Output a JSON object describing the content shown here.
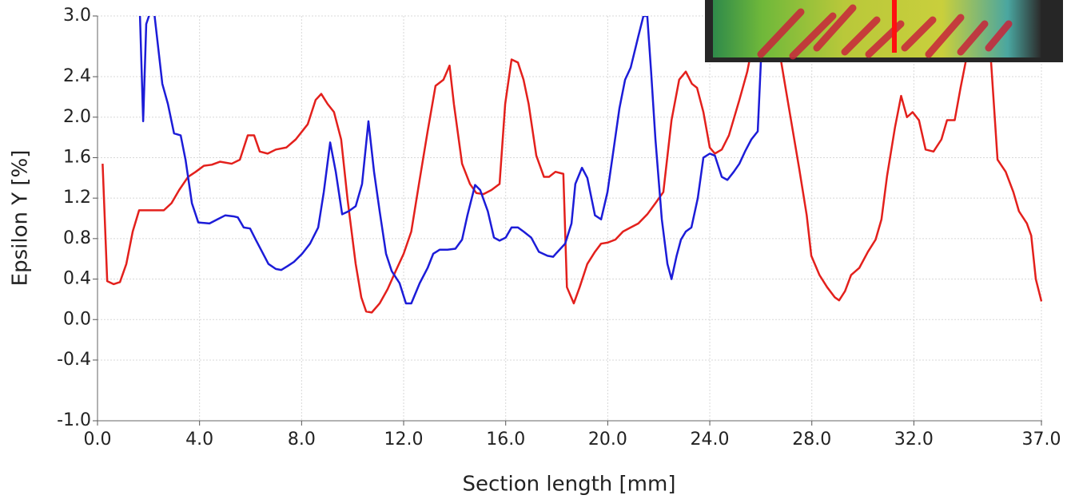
{
  "chart_data": {
    "type": "line",
    "x_label": "Section length [mm]",
    "y_label": "Epsilon Y [%]",
    "xlim": [
      0,
      37
    ],
    "ylim": [
      -1,
      3
    ],
    "xticks": [
      {
        "value": 0,
        "label": "0.0"
      },
      {
        "value": 4,
        "label": "4.0"
      },
      {
        "value": 8,
        "label": "8.0"
      },
      {
        "value": 12,
        "label": "12.0"
      },
      {
        "value": 16,
        "label": "16.0"
      },
      {
        "value": 20,
        "label": "20.0"
      },
      {
        "value": 24,
        "label": "24.0"
      },
      {
        "value": 28,
        "label": "28.0"
      },
      {
        "value": 32,
        "label": "32.0"
      },
      {
        "value": 37,
        "label": "37.0"
      }
    ],
    "yticks": [
      {
        "value": -1,
        "label": "-1.0"
      },
      {
        "value": -0.4,
        "label": "-0.4"
      },
      {
        "value": 0,
        "label": "0.0"
      },
      {
        "value": 0.4,
        "label": "0.4"
      },
      {
        "value": 0.8,
        "label": "0.8"
      },
      {
        "value": 1.2,
        "label": "1.2"
      },
      {
        "value": 1.6,
        "label": "1.6"
      },
      {
        "value": 2,
        "label": "2.0"
      },
      {
        "value": 2.4,
        "label": "2.4"
      },
      {
        "value": 3,
        "label": "3.0"
      }
    ],
    "grid": true,
    "series": [
      {
        "color": "#e3201c",
        "x": [
          0.2,
          0.38,
          0.63,
          0.88,
          1.13,
          1.38,
          1.63,
          2.13,
          2.6,
          2.9,
          3.2,
          3.55,
          3.85,
          4.17,
          4.48,
          4.8,
          5.26,
          5.58,
          5.89,
          6.14,
          6.36,
          6.67,
          6.99,
          7.4,
          7.77,
          8.24,
          8.55,
          8.77,
          9.02,
          9.27,
          9.55,
          9.8,
          10.12,
          10.34,
          10.53,
          10.75,
          11.06,
          11.37,
          11.69,
          12.0,
          12.3,
          12.6,
          12.94,
          13.25,
          13.56,
          13.8,
          13.97,
          14.29,
          14.6,
          14.85,
          15.13,
          15.44,
          15.76,
          15.98,
          16.23,
          16.48,
          16.7,
          16.9,
          17.2,
          17.5,
          17.7,
          17.95,
          18.26,
          18.4,
          18.67,
          18.9,
          19.2,
          19.5,
          19.74,
          19.99,
          20.3,
          20.6,
          20.9,
          21.2,
          21.55,
          21.87,
          22.18,
          22.5,
          22.8,
          23.06,
          23.3,
          23.5,
          23.75,
          24.0,
          24.2,
          24.47,
          24.75,
          25.16,
          25.47,
          25.8,
          26.3,
          26.97,
          27.5,
          27.8,
          27.98,
          28.3,
          28.6,
          28.9,
          29.07,
          29.3,
          29.54,
          29.86,
          30.2,
          30.5,
          30.73,
          30.95,
          31.26,
          31.5,
          31.73,
          31.95,
          32.2,
          32.46,
          32.77,
          33.08,
          33.3,
          33.6,
          33.83,
          34.08,
          34.5,
          35.02,
          35.28,
          35.6,
          35.9,
          36.12,
          36.43,
          36.6,
          36.78,
          37.0
        ],
        "values": [
          1.54,
          0.38,
          0.35,
          0.37,
          0.55,
          0.87,
          1.08,
          1.08,
          1.08,
          1.15,
          1.28,
          1.41,
          1.46,
          1.52,
          1.53,
          1.56,
          1.54,
          1.58,
          1.82,
          1.82,
          1.66,
          1.64,
          1.68,
          1.7,
          1.78,
          1.93,
          2.17,
          2.23,
          2.13,
          2.05,
          1.78,
          1.19,
          0.55,
          0.22,
          0.08,
          0.07,
          0.16,
          0.3,
          0.48,
          0.65,
          0.87,
          1.34,
          1.86,
          2.31,
          2.37,
          2.51,
          2.13,
          1.54,
          1.34,
          1.25,
          1.24,
          1.28,
          1.34,
          2.13,
          2.57,
          2.54,
          2.37,
          2.13,
          1.62,
          1.41,
          1.41,
          1.46,
          1.44,
          0.32,
          0.16,
          0.32,
          0.55,
          0.67,
          0.75,
          0.76,
          0.79,
          0.87,
          0.91,
          0.95,
          1.04,
          1.15,
          1.26,
          1.97,
          2.37,
          2.45,
          2.33,
          2.29,
          2.05,
          1.7,
          1.64,
          1.68,
          1.82,
          2.17,
          2.45,
          2.88,
          3.3,
          2.29,
          1.5,
          1.03,
          0.63,
          0.44,
          0.32,
          0.22,
          0.19,
          0.28,
          0.44,
          0.51,
          0.67,
          0.79,
          0.99,
          1.42,
          1.9,
          2.21,
          2.0,
          2.05,
          1.97,
          1.68,
          1.66,
          1.78,
          1.97,
          1.97,
          2.29,
          2.61,
          3.3,
          2.57,
          1.58,
          1.46,
          1.26,
          1.07,
          0.95,
          0.83,
          0.4,
          0.18
        ]
      },
      {
        "color": "#1c1cd8",
        "x": [
          1.66,
          1.79,
          1.91,
          2.07,
          2.22,
          2.54,
          2.76,
          3.0,
          3.26,
          3.45,
          3.7,
          3.95,
          4.39,
          4.7,
          5.01,
          5.33,
          5.5,
          5.73,
          5.98,
          6.2,
          6.45,
          6.7,
          6.99,
          7.2,
          7.46,
          7.7,
          8.02,
          8.33,
          8.65,
          8.87,
          9.12,
          9.34,
          9.59,
          9.84,
          10.12,
          10.37,
          10.62,
          10.84,
          11.06,
          11.31,
          11.53,
          11.84,
          12.09,
          12.3,
          12.63,
          12.94,
          13.16,
          13.41,
          13.72,
          14.03,
          14.29,
          14.5,
          14.8,
          15.0,
          15.3,
          15.54,
          15.76,
          16.0,
          16.23,
          16.48,
          16.7,
          17.0,
          17.3,
          17.64,
          17.86,
          18.0,
          18.33,
          18.58,
          18.73,
          18.99,
          19.2,
          19.5,
          19.74,
          19.99,
          20.24,
          20.46,
          20.68,
          20.9,
          21.2,
          21.4,
          21.55,
          21.7,
          21.87,
          22.12,
          22.34,
          22.5,
          22.7,
          22.87,
          23.06,
          23.28,
          23.53,
          23.75,
          24.0,
          24.2,
          24.47,
          24.69,
          24.94,
          25.16,
          25.38,
          25.63,
          25.88,
          26.0,
          26.1
        ],
        "values": [
          3.04,
          1.96,
          2.92,
          3.04,
          3.04,
          2.33,
          2.13,
          1.84,
          1.82,
          1.58,
          1.15,
          0.96,
          0.95,
          0.99,
          1.03,
          1.02,
          1.01,
          0.91,
          0.9,
          0.79,
          0.67,
          0.55,
          0.5,
          0.49,
          0.53,
          0.57,
          0.65,
          0.75,
          0.91,
          1.26,
          1.75,
          1.46,
          1.04,
          1.07,
          1.12,
          1.34,
          1.96,
          1.46,
          1.07,
          0.65,
          0.48,
          0.36,
          0.16,
          0.16,
          0.36,
          0.51,
          0.65,
          0.69,
          0.69,
          0.7,
          0.79,
          1.03,
          1.33,
          1.28,
          1.07,
          0.81,
          0.78,
          0.81,
          0.91,
          0.91,
          0.87,
          0.81,
          0.67,
          0.63,
          0.62,
          0.66,
          0.75,
          0.95,
          1.34,
          1.5,
          1.4,
          1.03,
          0.99,
          1.26,
          1.7,
          2.09,
          2.37,
          2.49,
          2.8,
          3.0,
          3.0,
          2.45,
          1.78,
          0.99,
          0.55,
          0.4,
          0.63,
          0.79,
          0.87,
          0.91,
          1.2,
          1.6,
          1.64,
          1.62,
          1.41,
          1.38,
          1.46,
          1.54,
          1.66,
          1.78,
          1.86,
          2.53,
          3.0
        ]
      }
    ]
  }
}
